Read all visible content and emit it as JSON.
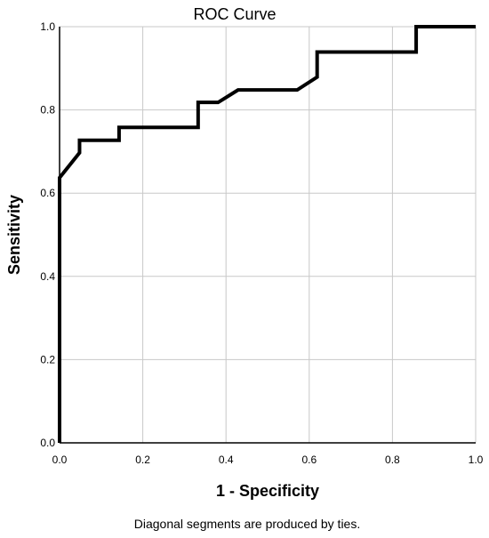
{
  "chart_data": {
    "type": "line",
    "title": "ROC Curve",
    "xlabel": "1 - Specificity",
    "ylabel": "Sensitivity",
    "xlim": [
      0,
      1
    ],
    "ylim": [
      0,
      1
    ],
    "grid": true,
    "x_ticks": [
      "0.0",
      "0.2",
      "0.4",
      "0.6",
      "0.8",
      "1.0"
    ],
    "y_ticks": [
      "0.0",
      "0.2",
      "0.4",
      "0.6",
      "0.8",
      "1.0"
    ],
    "series": [
      {
        "color": "#000000",
        "x": [
          0.0,
          0.0,
          0.0,
          0.048,
          0.048,
          0.143,
          0.143,
          0.333,
          0.333,
          0.381,
          0.429,
          0.571,
          0.619,
          0.619,
          0.857,
          0.857,
          1.0
        ],
        "y": [
          0.0,
          0.0,
          0.637,
          0.697,
          0.727,
          0.727,
          0.758,
          0.758,
          0.818,
          0.818,
          0.848,
          0.848,
          0.879,
          0.939,
          0.939,
          1.0,
          1.0
        ]
      }
    ],
    "footnote": "Diagonal segments are produced by ties."
  }
}
